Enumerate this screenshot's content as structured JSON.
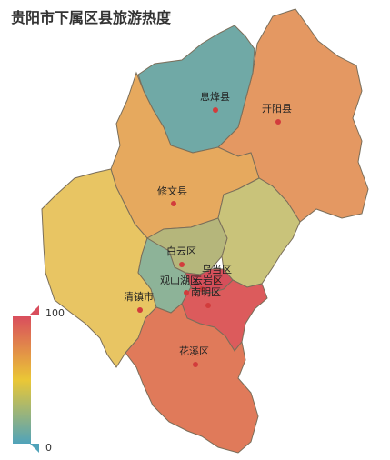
{
  "title": "贵阳市下属区县旅游热度",
  "visual_map": {
    "max_label": "100",
    "min_label": "0",
    "colors": [
      "#d94e5d",
      "#eac736",
      "#50a3ba"
    ]
  },
  "districts": [
    {
      "name": "息烽县",
      "color": "#70a9a6"
    },
    {
      "name": "开阳县",
      "color": "#e49862"
    },
    {
      "name": "修文县",
      "color": "#e6a95e"
    },
    {
      "name": "清镇市",
      "color": "#e8c563"
    },
    {
      "name": "白云区",
      "color": "#b5b67b"
    },
    {
      "name": "乌当区",
      "color": "#c9c37a"
    },
    {
      "name": "观山湖区",
      "color": "#8db398"
    },
    {
      "name": "云岩区",
      "color": "#d54f5a"
    },
    {
      "name": "南明区",
      "color": "#dc5b5c"
    },
    {
      "name": "花溪区",
      "color": "#e07a5a"
    }
  ]
}
